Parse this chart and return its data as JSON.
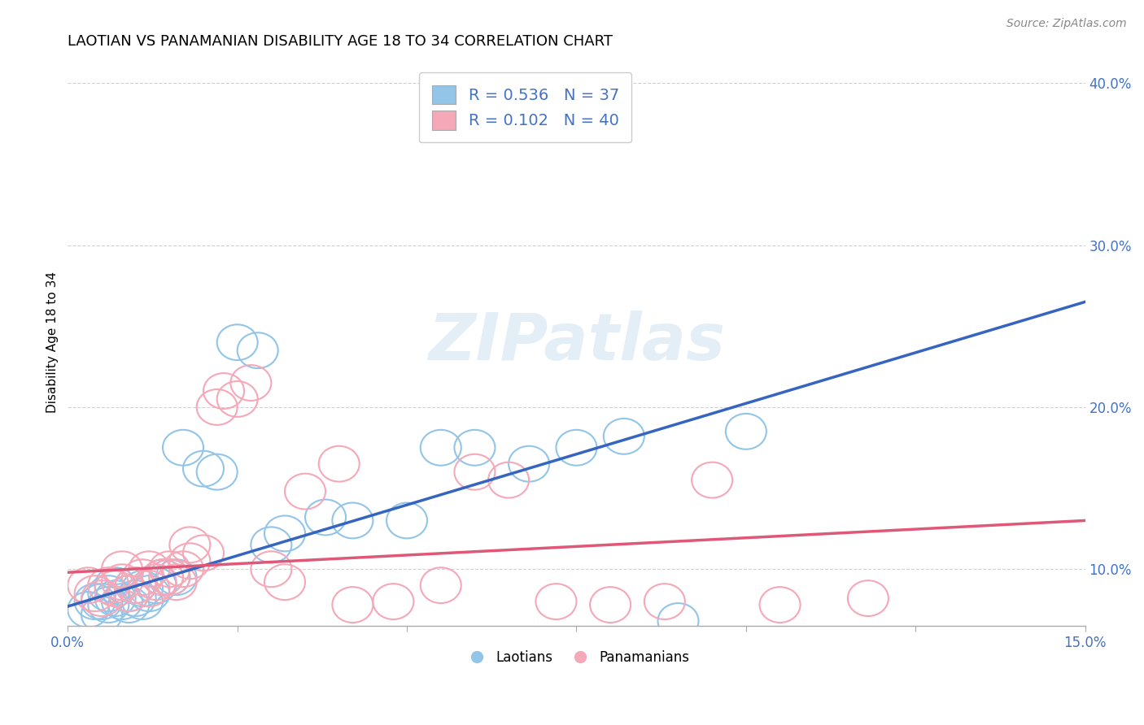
{
  "title": "LAOTIAN VS PANAMANIAN DISABILITY AGE 18 TO 34 CORRELATION CHART",
  "source_text": "Source: ZipAtlas.com",
  "ylabel": "Disability Age 18 to 34",
  "xlim": [
    0.0,
    0.15
  ],
  "ylim": [
    0.065,
    0.415
  ],
  "xticks": [
    0.0,
    0.025,
    0.05,
    0.075,
    0.1,
    0.125,
    0.15
  ],
  "xticklabels": [
    "0.0%",
    "",
    "",
    "",
    "",
    "",
    "15.0%"
  ],
  "yticks": [
    0.1,
    0.2,
    0.3,
    0.4
  ],
  "yticklabels": [
    "10.0%",
    "20.0%",
    "30.0%",
    "40.0%"
  ],
  "blue_R": 0.536,
  "blue_N": 37,
  "pink_R": 0.102,
  "pink_N": 40,
  "blue_color": "#92c5e8",
  "pink_color": "#f5a8b8",
  "blue_line_color": "#3565c0",
  "pink_line_color": "#e05878",
  "text_color": "#4472c4",
  "background_color": "#ffffff",
  "watermark": "ZIPatlas",
  "blue_scatter_x": [
    0.003,
    0.004,
    0.005,
    0.005,
    0.006,
    0.006,
    0.007,
    0.007,
    0.008,
    0.009,
    0.009,
    0.01,
    0.01,
    0.011,
    0.011,
    0.012,
    0.013,
    0.014,
    0.015,
    0.016,
    0.017,
    0.02,
    0.022,
    0.025,
    0.028,
    0.03,
    0.032,
    0.038,
    0.042,
    0.05,
    0.055,
    0.06,
    0.068,
    0.075,
    0.082,
    0.09,
    0.1
  ],
  "blue_scatter_y": [
    0.075,
    0.08,
    0.072,
    0.08,
    0.078,
    0.085,
    0.082,
    0.09,
    0.08,
    0.078,
    0.085,
    0.082,
    0.09,
    0.08,
    0.088,
    0.085,
    0.09,
    0.095,
    0.095,
    0.095,
    0.175,
    0.162,
    0.16,
    0.24,
    0.235,
    0.115,
    0.122,
    0.132,
    0.13,
    0.13,
    0.175,
    0.175,
    0.165,
    0.175,
    0.182,
    0.068,
    0.185
  ],
  "pink_scatter_x": [
    0.003,
    0.004,
    0.005,
    0.006,
    0.007,
    0.008,
    0.008,
    0.009,
    0.01,
    0.011,
    0.012,
    0.012,
    0.013,
    0.014,
    0.015,
    0.015,
    0.016,
    0.017,
    0.018,
    0.018,
    0.02,
    0.022,
    0.023,
    0.025,
    0.027,
    0.03,
    0.032,
    0.035,
    0.04,
    0.042,
    0.048,
    0.055,
    0.06,
    0.065,
    0.072,
    0.08,
    0.088,
    0.095,
    0.105,
    0.118
  ],
  "pink_scatter_y": [
    0.09,
    0.085,
    0.082,
    0.09,
    0.088,
    0.092,
    0.1,
    0.085,
    0.09,
    0.095,
    0.088,
    0.1,
    0.092,
    0.095,
    0.095,
    0.1,
    0.092,
    0.1,
    0.105,
    0.115,
    0.11,
    0.2,
    0.21,
    0.205,
    0.215,
    0.1,
    0.092,
    0.148,
    0.165,
    0.078,
    0.08,
    0.09,
    0.16,
    0.155,
    0.08,
    0.078,
    0.08,
    0.155,
    0.078,
    0.082
  ],
  "blue_line_x0": 0.0,
  "blue_line_y0": 0.077,
  "blue_line_x1": 0.15,
  "blue_line_y1": 0.265,
  "pink_line_x0": 0.0,
  "pink_line_y0": 0.098,
  "pink_line_x1": 0.15,
  "pink_line_y1": 0.13
}
